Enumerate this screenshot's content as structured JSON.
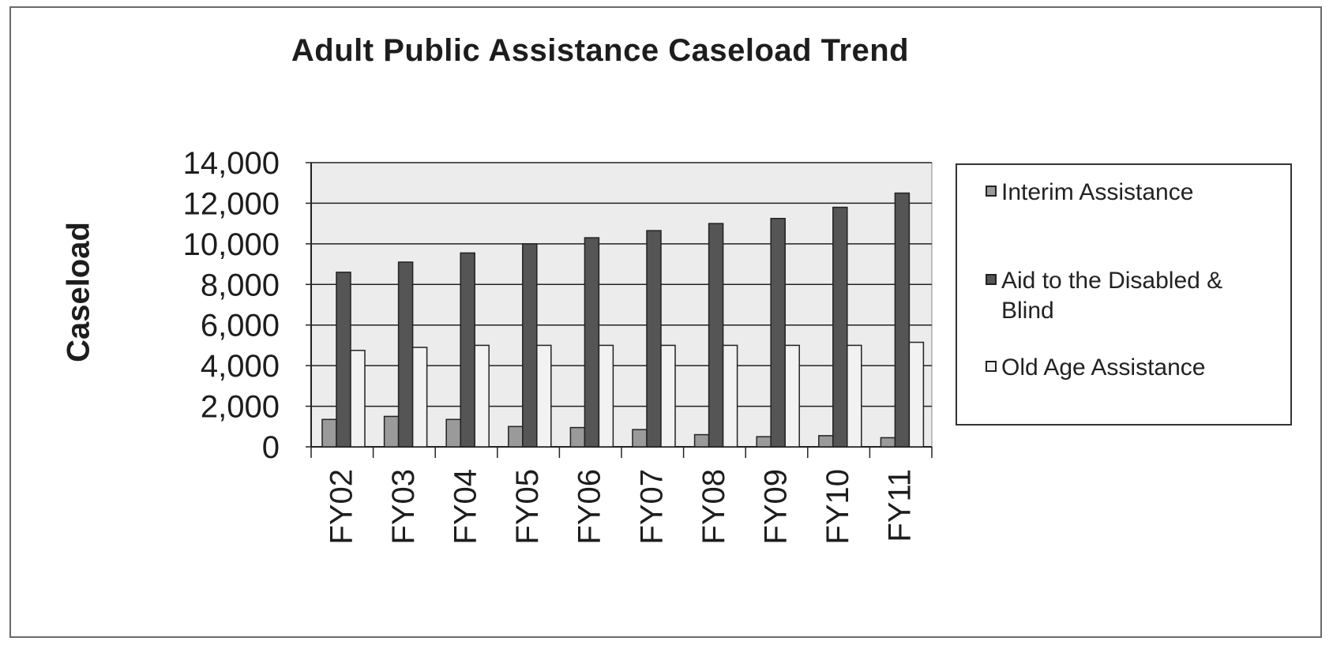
{
  "chart_data": {
    "type": "bar",
    "title": "Adult Public Assistance  Caseload  Trend",
    "ylabel": "Caseload",
    "xlabel": "",
    "categories": [
      "FY02",
      "FY03",
      "FY04",
      "FY05",
      "FY06",
      "FY07",
      "FY08",
      "FY09",
      "FY10",
      "FY11"
    ],
    "ylim": [
      0,
      14000
    ],
    "yticks": [
      0,
      2000,
      4000,
      6000,
      8000,
      10000,
      12000,
      14000
    ],
    "ytick_labels": [
      "0",
      "2,000",
      "4,000",
      "6,000",
      "8,000",
      "10,000",
      "12,000",
      "14,000"
    ],
    "grid": true,
    "legend_position": "right",
    "series": [
      {
        "name": "Interim Assistance",
        "color": "#9a9a9a",
        "values": [
          1350,
          1500,
          1350,
          1000,
          950,
          850,
          600,
          500,
          550,
          450
        ]
      },
      {
        "name": "Aid to the Disabled & Blind",
        "color": "#555555",
        "values": [
          8600,
          9100,
          9550,
          10000,
          10300,
          10650,
          11000,
          11250,
          11800,
          12500
        ]
      },
      {
        "name": "Old Age Assistance",
        "color": "#f2f2f2",
        "values": [
          4750,
          4900,
          5000,
          5000,
          5000,
          5000,
          5000,
          5000,
          5000,
          5150
        ]
      }
    ],
    "plot_background": "#ececec"
  }
}
